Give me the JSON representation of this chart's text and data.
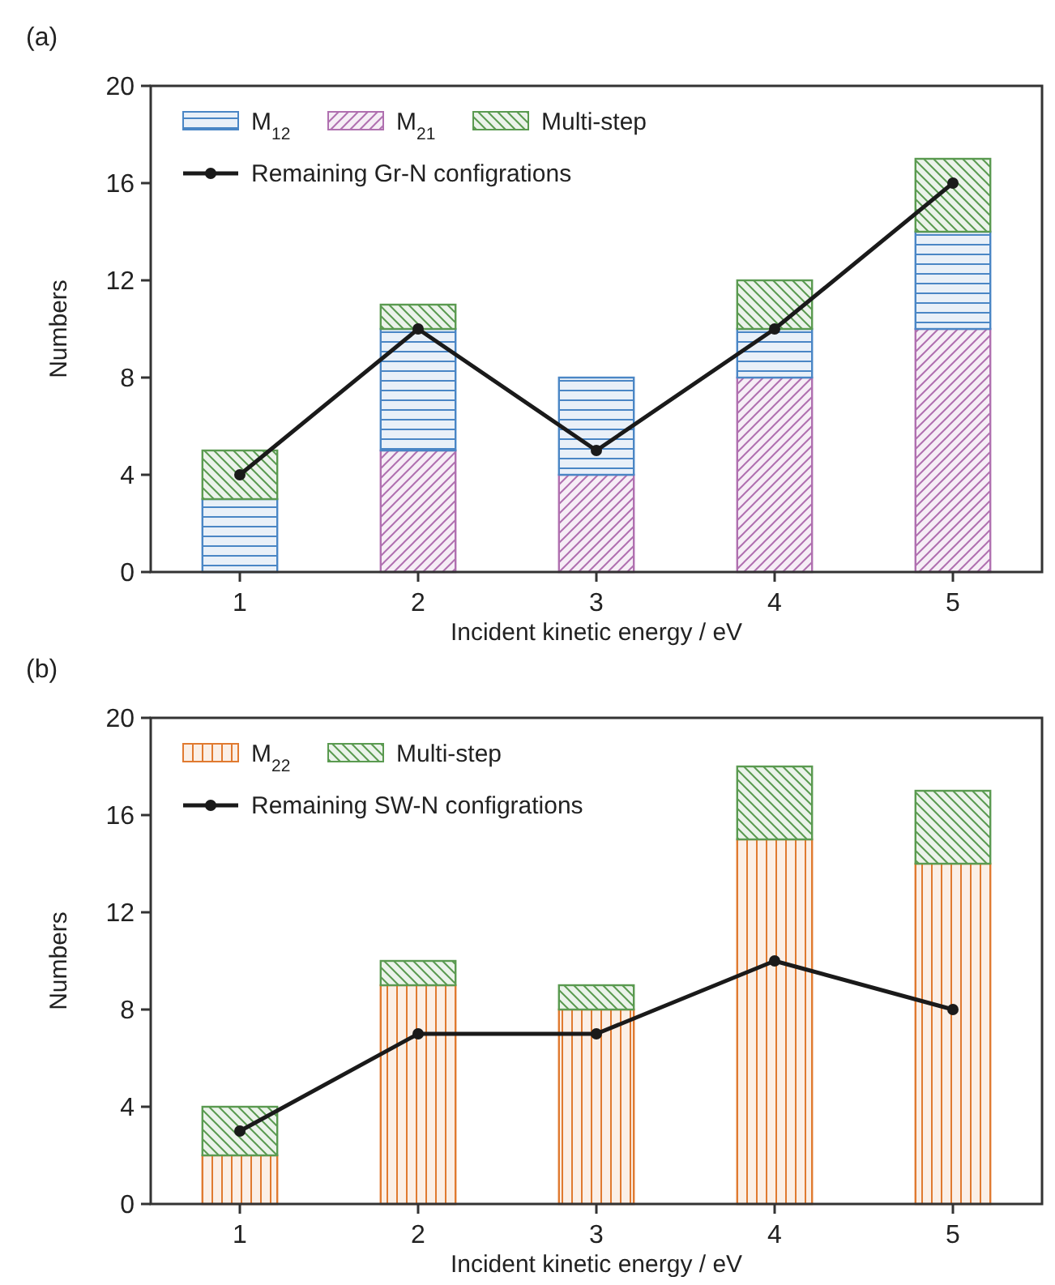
{
  "chart_data": [
    {
      "type": "bar",
      "stacked": true,
      "annotations": [
        "(a)"
      ],
      "xlabel": "Incident kinetic energy / eV",
      "ylabel": "Numbers",
      "categories": [
        "1",
        "2",
        "3",
        "4",
        "5"
      ],
      "ylim": [
        0,
        20
      ],
      "yticks": [
        0,
        4,
        8,
        12,
        16,
        20
      ],
      "legend": "top left",
      "series": [
        {
          "name": "M$_{21}$",
          "color": "#b070b0",
          "values": [
            0,
            5,
            4,
            8,
            10
          ]
        },
        {
          "name": "M$_{12}$",
          "color": "#4a86c5",
          "values": [
            3,
            5,
            4,
            2,
            4
          ]
        },
        {
          "name": "Multi-step",
          "color": "#5a9a50",
          "values": [
            2,
            1,
            0,
            2,
            3
          ]
        },
        {
          "name": "Remaining Gr-N configrations",
          "type": "line",
          "color": "#1a1a1a",
          "marker": "circle",
          "values": [
            4,
            10,
            5,
            10,
            16
          ]
        }
      ]
    },
    {
      "type": "bar",
      "stacked": true,
      "annotations": [
        "(b)"
      ],
      "xlabel": "Incident kinetic energy / eV",
      "ylabel": "Numbers",
      "categories": [
        "1",
        "2",
        "3",
        "4",
        "5"
      ],
      "ylim": [
        0,
        20
      ],
      "yticks": [
        0,
        4,
        8,
        12,
        16,
        20
      ],
      "legend": "top left",
      "series": [
        {
          "name": "M$_{22}$",
          "color": "#e07a30",
          "values": [
            2,
            9,
            8,
            15,
            14
          ]
        },
        {
          "name": "Multi-step",
          "color": "#5a9a50",
          "values": [
            2,
            1,
            1,
            3,
            3
          ]
        },
        {
          "name": "Remaining SW-N configrations",
          "type": "line",
          "color": "#1a1a1a",
          "marker": "circle",
          "values": [
            3,
            7,
            7,
            10,
            8
          ]
        }
      ]
    }
  ]
}
